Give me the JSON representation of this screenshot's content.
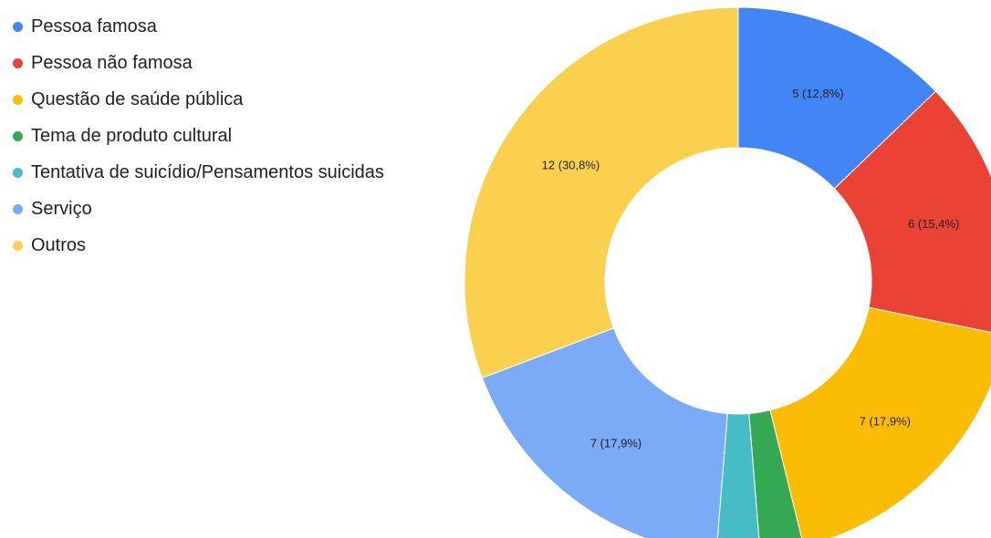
{
  "chart_data": {
    "type": "pie",
    "style": "donut",
    "title": "",
    "legend_position": "left",
    "slices": [
      {
        "label": "Pessoa famosa",
        "value": 5,
        "percent": "12,8%",
        "data_label": "5 (12,8%)",
        "color": "#4285F4"
      },
      {
        "label": "Pessoa não famosa",
        "value": 6,
        "percent": "15,4%",
        "data_label": "6 (15,4%)",
        "color": "#EA4335"
      },
      {
        "label": "Questão de saúde pública",
        "value": 7,
        "percent": "17,9%",
        "data_label": "7 (17,9%)",
        "color": "#FBBC04"
      },
      {
        "label": "Tema de produto cultural",
        "value": 1,
        "percent": "2,6%",
        "data_label": "",
        "color": "#34A853"
      },
      {
        "label": "Tentativa de suicídio/Pensamentos suicidas",
        "value": 1,
        "percent": "2,6%",
        "data_label": "",
        "color": "#46BDC6"
      },
      {
        "label": "Serviço",
        "value": 7,
        "percent": "17,9%",
        "data_label": "7 (17,9%)",
        "color": "#7BAAF7"
      },
      {
        "label": "Outros",
        "value": 12,
        "percent": "30,8%",
        "data_label": "12 (30,8%)",
        "color": "#FCD04F"
      }
    ]
  }
}
